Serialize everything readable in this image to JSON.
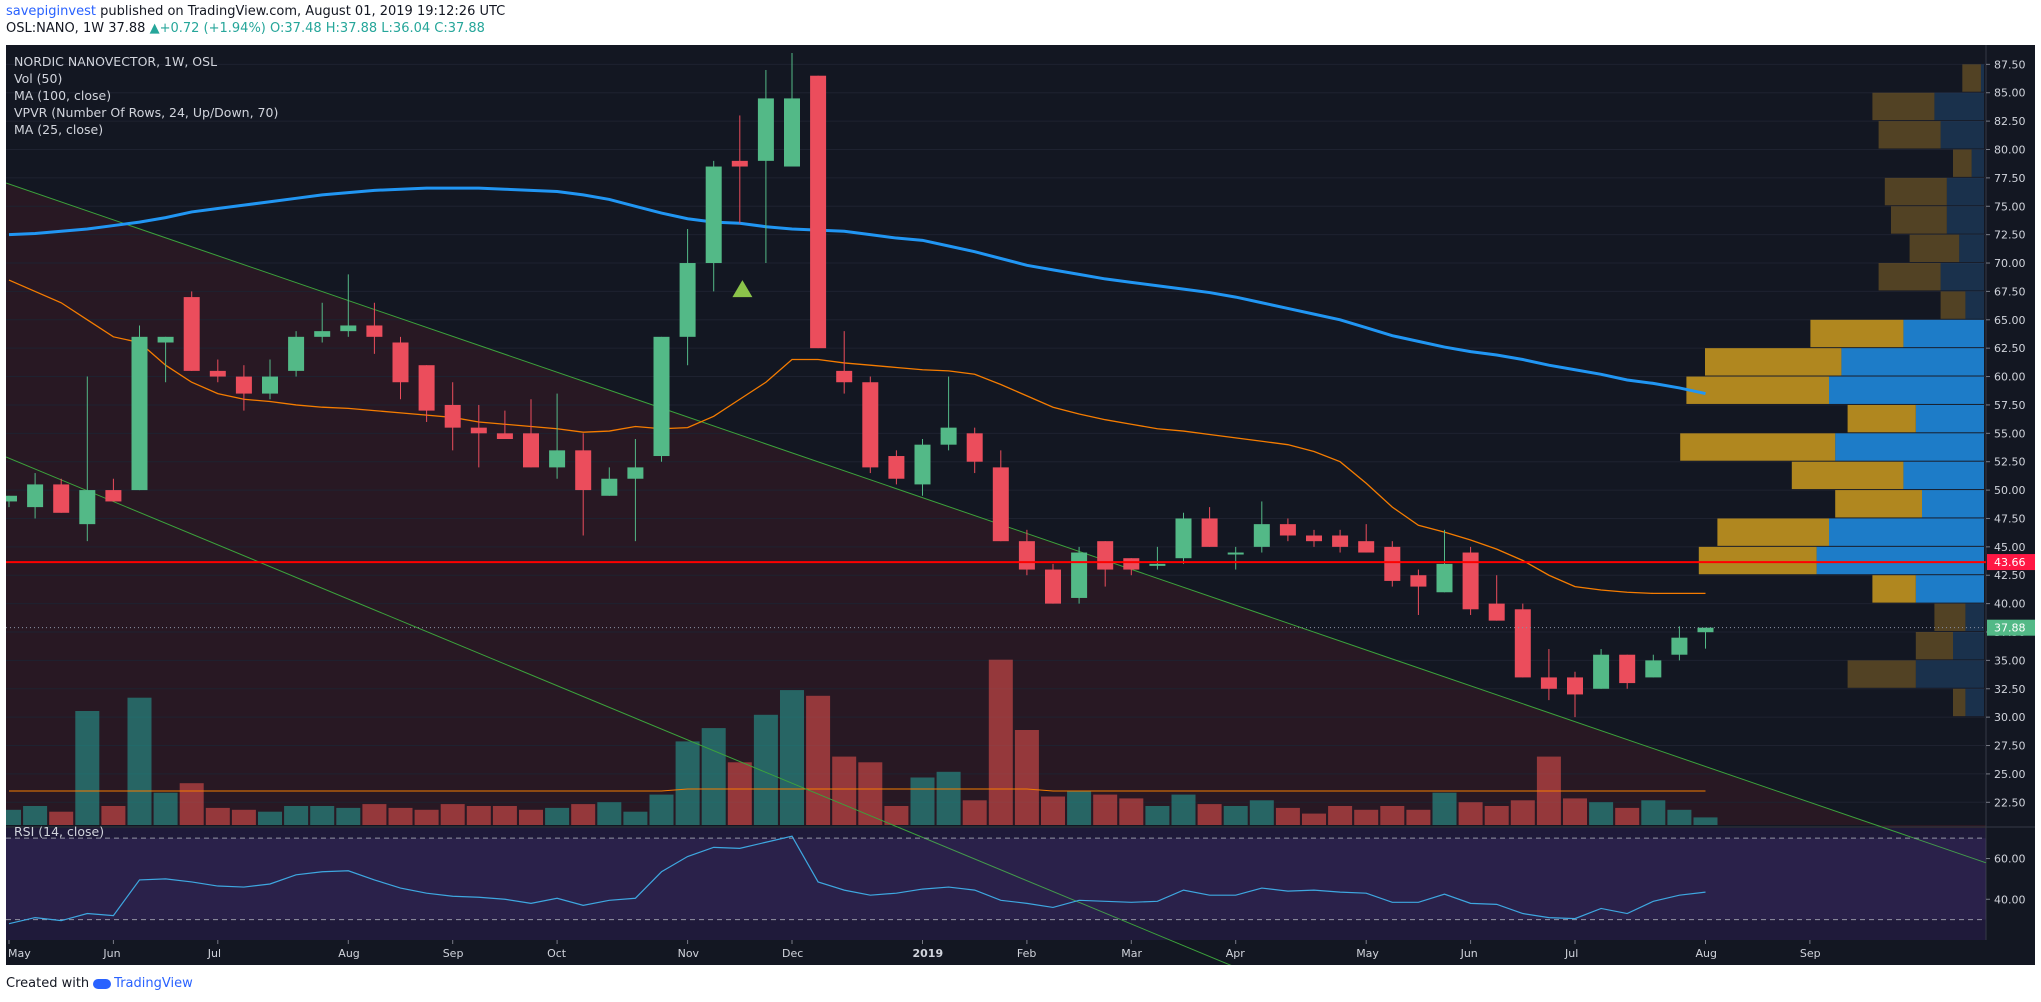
{
  "header": {
    "publisher": "savepiginvest",
    "published_text": "published on TradingView.com, August 01, 2019 19:12:26 UTC",
    "symbol": "OSL:NANO, 1W",
    "last": "37.88",
    "change": "+0.72 (+1.94%)",
    "open": "O:37.48",
    "high": "H:37.88",
    "low": "L:36.04",
    "close": "C:37.88"
  },
  "legend": {
    "title": "NORDIC NANOVECTOR, 1W, OSL",
    "vol": "Vol (50)",
    "ma100": "MA (100, close)",
    "vpvr": "VPVR (Number Of Rows, 24, Up/Down, 70)",
    "ma25": "MA (25, close)",
    "rsi": "RSI (14, close)"
  },
  "footer": {
    "created": "Created with",
    "brand": "TradingView"
  },
  "colors": {
    "bg": "#131722",
    "up": "#53b987",
    "down": "#eb4d5c",
    "ma100": "#2196f3",
    "ma25": "#f57c00",
    "hline": "#ff0000",
    "trend": "#3ca33c"
  },
  "chart_data": {
    "type": "candlestick",
    "title": "NORDIC NANOVECTOR, 1W, OSL",
    "price_ticks": [
      "87.50",
      "85.00",
      "82.50",
      "80.00",
      "77.50",
      "75.00",
      "72.50",
      "70.00",
      "67.50",
      "65.00",
      "62.50",
      "60.00",
      "57.50",
      "55.00",
      "52.50",
      "50.00",
      "47.50",
      "45.00",
      "42.50",
      "40.00",
      "37.50",
      "35.00",
      "32.50",
      "30.00",
      "27.50",
      "25.00",
      "22.50"
    ],
    "ylim": [
      20.5,
      88.5
    ],
    "rsi_ticks": [
      "60.00",
      "40.00"
    ],
    "rsi_levels": [
      70,
      30
    ],
    "time_labels": [
      "May",
      "Jun",
      "Jul",
      "Aug",
      "Sep",
      "Oct",
      "Nov",
      "Dec",
      "2019",
      "Feb",
      "Mar",
      "Apr",
      "May",
      "Jun",
      "Jul",
      "Aug",
      "Sep"
    ],
    "time_label_index": [
      0,
      4,
      8,
      13,
      17,
      21,
      26,
      30,
      35,
      39,
      43,
      47,
      52,
      56,
      60,
      65,
      69
    ],
    "hline": {
      "value": 43.66,
      "label": "43.66"
    },
    "last_price": {
      "value": 37.88,
      "label": "37.88"
    },
    "candles": [
      {
        "o": 49.0,
        "h": 49.5,
        "l": 48.5,
        "c": 49.5
      },
      {
        "o": 48.5,
        "h": 51.5,
        "l": 47.5,
        "c": 50.5
      },
      {
        "o": 50.5,
        "h": 51.0,
        "l": 48.0,
        "c": 48.0
      },
      {
        "o": 47.0,
        "h": 60.0,
        "l": 45.5,
        "c": 50.0
      },
      {
        "o": 50.0,
        "h": 51.0,
        "l": 49.0,
        "c": 49.0
      },
      {
        "o": 50.0,
        "h": 64.5,
        "l": 50.0,
        "c": 63.5
      },
      {
        "o": 63.0,
        "h": 63.5,
        "l": 59.5,
        "c": 63.5
      },
      {
        "o": 67.0,
        "h": 67.5,
        "l": 60.5,
        "c": 60.5
      },
      {
        "o": 60.5,
        "h": 61.5,
        "l": 59.5,
        "c": 60.0
      },
      {
        "o": 60.0,
        "h": 61.0,
        "l": 57.0,
        "c": 58.5
      },
      {
        "o": 58.5,
        "h": 61.5,
        "l": 58.0,
        "c": 60.0
      },
      {
        "o": 60.5,
        "h": 64.0,
        "l": 60.0,
        "c": 63.5
      },
      {
        "o": 63.5,
        "h": 66.5,
        "l": 63.0,
        "c": 64.0
      },
      {
        "o": 64.0,
        "h": 69.0,
        "l": 63.5,
        "c": 64.5
      },
      {
        "o": 64.5,
        "h": 66.5,
        "l": 62.0,
        "c": 63.5
      },
      {
        "o": 63.0,
        "h": 63.5,
        "l": 58.0,
        "c": 59.5
      },
      {
        "o": 61.0,
        "h": 61.0,
        "l": 56.0,
        "c": 57.0
      },
      {
        "o": 57.5,
        "h": 59.5,
        "l": 53.5,
        "c": 55.5
      },
      {
        "o": 55.5,
        "h": 57.5,
        "l": 52.0,
        "c": 55.0
      },
      {
        "o": 55.0,
        "h": 57.0,
        "l": 54.5,
        "c": 54.5
      },
      {
        "o": 55.0,
        "h": 58.0,
        "l": 52.0,
        "c": 52.0
      },
      {
        "o": 52.0,
        "h": 58.5,
        "l": 51.0,
        "c": 53.5
      },
      {
        "o": 53.5,
        "h": 55.0,
        "l": 46.0,
        "c": 50.0
      },
      {
        "o": 49.5,
        "h": 52.0,
        "l": 49.5,
        "c": 51.0
      },
      {
        "o": 51.0,
        "h": 54.5,
        "l": 45.5,
        "c": 52.0
      },
      {
        "o": 53.0,
        "h": 63.5,
        "l": 52.5,
        "c": 63.5
      },
      {
        "o": 63.5,
        "h": 73.0,
        "l": 61.0,
        "c": 70.0
      },
      {
        "o": 70.0,
        "h": 79.0,
        "l": 67.5,
        "c": 78.5
      },
      {
        "o": 79.0,
        "h": 83.0,
        "l": 73.5,
        "c": 78.5
      },
      {
        "o": 79.0,
        "h": 87.0,
        "l": 70.0,
        "c": 84.5
      },
      {
        "o": 78.5,
        "h": 88.5,
        "l": 78.5,
        "c": 84.5
      },
      {
        "o": 86.5,
        "h": 86.5,
        "l": 62.5,
        "c": 62.5
      },
      {
        "o": 60.5,
        "h": 64.0,
        "l": 58.5,
        "c": 59.5
      },
      {
        "o": 59.5,
        "h": 60.0,
        "l": 51.5,
        "c": 52.0
      },
      {
        "o": 53.0,
        "h": 53.5,
        "l": 50.5,
        "c": 51.0
      },
      {
        "o": 50.5,
        "h": 54.5,
        "l": 49.5,
        "c": 54.0
      },
      {
        "o": 54.0,
        "h": 60.0,
        "l": 53.5,
        "c": 55.5
      },
      {
        "o": 55.0,
        "h": 55.5,
        "l": 51.5,
        "c": 52.5
      },
      {
        "o": 52.0,
        "h": 53.5,
        "l": 45.5,
        "c": 45.5
      },
      {
        "o": 45.5,
        "h": 46.5,
        "l": 42.5,
        "c": 43.0
      },
      {
        "o": 43.0,
        "h": 43.5,
        "l": 40.0,
        "c": 40.0
      },
      {
        "o": 40.5,
        "h": 45.0,
        "l": 40.0,
        "c": 44.5
      },
      {
        "o": 45.5,
        "h": 45.5,
        "l": 41.5,
        "c": 43.0
      },
      {
        "o": 44.0,
        "h": 44.0,
        "l": 42.5,
        "c": 43.0
      },
      {
        "o": 43.5,
        "h": 45.0,
        "l": 43.0,
        "c": 43.5
      },
      {
        "o": 44.0,
        "h": 48.0,
        "l": 43.5,
        "c": 47.5
      },
      {
        "o": 47.5,
        "h": 48.5,
        "l": 45.0,
        "c": 45.0
      },
      {
        "o": 44.5,
        "h": 45.0,
        "l": 43.0,
        "c": 44.5
      },
      {
        "o": 45.0,
        "h": 49.0,
        "l": 44.5,
        "c": 47.0
      },
      {
        "o": 47.0,
        "h": 47.5,
        "l": 45.5,
        "c": 46.0
      },
      {
        "o": 46.0,
        "h": 46.5,
        "l": 45.0,
        "c": 45.5
      },
      {
        "o": 46.0,
        "h": 46.5,
        "l": 44.5,
        "c": 45.0
      },
      {
        "o": 45.5,
        "h": 47.0,
        "l": 44.5,
        "c": 44.5
      },
      {
        "o": 45.0,
        "h": 45.5,
        "l": 41.5,
        "c": 42.0
      },
      {
        "o": 42.5,
        "h": 43.0,
        "l": 39.0,
        "c": 41.5
      },
      {
        "o": 41.0,
        "h": 46.5,
        "l": 41.0,
        "c": 43.5
      },
      {
        "o": 44.5,
        "h": 45.0,
        "l": 39.0,
        "c": 39.5
      },
      {
        "o": 40.0,
        "h": 42.5,
        "l": 38.5,
        "c": 38.5
      },
      {
        "o": 39.5,
        "h": 40.0,
        "l": 33.5,
        "c": 33.5
      },
      {
        "o": 33.5,
        "h": 36.0,
        "l": 31.5,
        "c": 32.5
      },
      {
        "o": 33.5,
        "h": 34.0,
        "l": 30.0,
        "c": 32.0
      },
      {
        "o": 32.5,
        "h": 36.0,
        "l": 32.5,
        "c": 35.5
      },
      {
        "o": 35.5,
        "h": 35.5,
        "l": 32.5,
        "c": 33.0
      },
      {
        "o": 33.5,
        "h": 35.5,
        "l": 33.5,
        "c": 35.0
      },
      {
        "o": 35.5,
        "h": 38.0,
        "l": 35.0,
        "c": 37.0
      },
      {
        "o": 37.48,
        "h": 37.88,
        "l": 36.04,
        "c": 37.88
      }
    ],
    "volume": {
      "max": 1.0,
      "values": [
        0.08,
        0.1,
        0.07,
        0.6,
        0.1,
        0.67,
        0.17,
        0.22,
        0.09,
        0.08,
        0.07,
        0.1,
        0.1,
        0.09,
        0.11,
        0.09,
        0.08,
        0.11,
        0.1,
        0.1,
        0.08,
        0.09,
        0.11,
        0.12,
        0.07,
        0.16,
        0.44,
        0.51,
        0.33,
        0.58,
        0.71,
        0.68,
        0.36,
        0.33,
        0.1,
        0.25,
        0.28,
        0.13,
        0.87,
        0.5,
        0.15,
        0.18,
        0.16,
        0.14,
        0.1,
        0.16,
        0.11,
        0.1,
        0.13,
        0.09,
        0.06,
        0.1,
        0.08,
        0.1,
        0.08,
        0.17,
        0.12,
        0.1,
        0.13,
        0.36,
        0.14,
        0.12,
        0.09,
        0.13,
        0.08,
        0.04
      ]
    },
    "ma100": [
      72.5,
      72.6,
      72.8,
      73.0,
      73.3,
      73.6,
      74.0,
      74.5,
      74.8,
      75.1,
      75.4,
      75.7,
      76.0,
      76.2,
      76.4,
      76.5,
      76.6,
      76.6,
      76.6,
      76.5,
      76.4,
      76.3,
      76.0,
      75.6,
      75.0,
      74.4,
      73.9,
      73.6,
      73.5,
      73.2,
      73.0,
      72.9,
      72.8,
      72.5,
      72.2,
      72.0,
      71.5,
      71.0,
      70.4,
      69.8,
      69.4,
      69.0,
      68.6,
      68.3,
      68.0,
      67.7,
      67.4,
      67.0,
      66.5,
      66.0,
      65.5,
      65.0,
      64.3,
      63.6,
      63.1,
      62.6,
      62.2,
      61.9,
      61.5,
      61.0,
      60.6,
      60.2,
      59.7,
      59.4,
      59.0,
      58.5
    ],
    "ma25": [
      68.5,
      67.5,
      66.5,
      65.0,
      63.5,
      63.0,
      61.0,
      59.5,
      58.5,
      58.0,
      57.8,
      57.5,
      57.3,
      57.2,
      57.0,
      56.8,
      56.6,
      56.4,
      56.0,
      55.8,
      55.6,
      55.4,
      55.1,
      55.2,
      55.6,
      55.4,
      55.5,
      56.5,
      58.0,
      59.5,
      61.5,
      61.5,
      61.2,
      61.0,
      60.8,
      60.6,
      60.5,
      60.2,
      59.3,
      58.3,
      57.3,
      56.7,
      56.2,
      55.8,
      55.4,
      55.2,
      54.9,
      54.6,
      54.3,
      54.0,
      53.4,
      52.5,
      50.6,
      48.5,
      46.9,
      46.3,
      45.6,
      44.8,
      43.8,
      42.5,
      41.5,
      41.2,
      41.0,
      40.9,
      40.9,
      40.9
    ],
    "rsi": [
      28.0,
      31.0,
      29.5,
      33.0,
      32.0,
      49.5,
      50.0,
      48.5,
      46.5,
      46.0,
      47.5,
      52.0,
      53.5,
      54.0,
      49.5,
      45.5,
      43.0,
      41.5,
      41.0,
      40.0,
      38.0,
      40.5,
      37.0,
      39.5,
      40.5,
      53.5,
      61.0,
      65.5,
      65.0,
      68.0,
      71.0,
      48.5,
      44.5,
      42.0,
      43.0,
      45.0,
      46.0,
      44.5,
      39.5,
      38.0,
      36.0,
      39.5,
      39.0,
      38.5,
      39.0,
      44.5,
      42.0,
      42.0,
      45.5,
      44.0,
      44.5,
      43.5,
      43.0,
      38.5,
      38.5,
      42.5,
      38.0,
      37.5,
      33.0,
      31.0,
      30.5,
      35.5,
      33.0,
      39.0,
      42.0,
      43.5
    ],
    "vpvr": [
      {
        "price": 86.25,
        "up": 0.03,
        "down": 0.005
      },
      {
        "price": 83.75,
        "up": 0.1,
        "down": 0.08
      },
      {
        "price": 81.25,
        "up": 0.1,
        "down": 0.07
      },
      {
        "price": 78.75,
        "up": 0.03,
        "down": 0.02
      },
      {
        "price": 76.25,
        "up": 0.1,
        "down": 0.06
      },
      {
        "price": 73.75,
        "up": 0.09,
        "down": 0.06
      },
      {
        "price": 71.25,
        "up": 0.08,
        "down": 0.04
      },
      {
        "price": 68.75,
        "up": 0.1,
        "down": 0.07
      },
      {
        "price": 66.25,
        "up": 0.04,
        "down": 0.03
      },
      {
        "price": 63.75,
        "up": 0.15,
        "down": 0.13
      },
      {
        "price": 61.25,
        "up": 0.22,
        "down": 0.23
      },
      {
        "price": 58.75,
        "up": 0.23,
        "down": 0.25
      },
      {
        "price": 56.25,
        "up": 0.11,
        "down": 0.11
      },
      {
        "price": 53.75,
        "up": 0.25,
        "down": 0.24
      },
      {
        "price": 51.25,
        "up": 0.18,
        "down": 0.13
      },
      {
        "price": 48.75,
        "up": 0.14,
        "down": 0.1
      },
      {
        "price": 46.25,
        "up": 0.18,
        "down": 0.25
      },
      {
        "price": 43.75,
        "up": 0.19,
        "down": 0.27
      },
      {
        "price": 41.25,
        "up": 0.07,
        "down": 0.11
      },
      {
        "price": 38.75,
        "up": 0.05,
        "down": 0.03
      },
      {
        "price": 36.25,
        "up": 0.06,
        "down": 0.05
      },
      {
        "price": 33.75,
        "up": 0.11,
        "down": 0.11
      },
      {
        "price": 31.25,
        "up": 0.02,
        "down": 0.03
      }
    ]
  }
}
